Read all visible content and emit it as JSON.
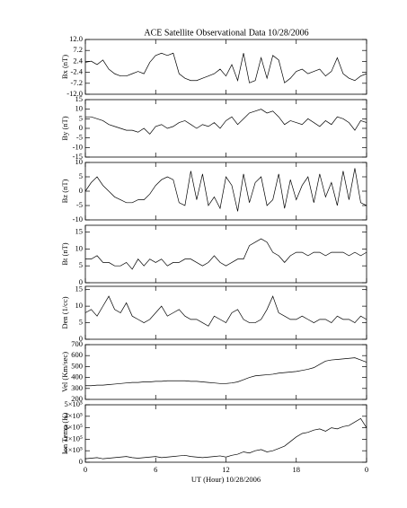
{
  "chart_data": [
    {
      "type": "line",
      "title": "ACE Satellite Observational Data   10/28/2006",
      "y_label": "Bx (nT)",
      "xlim": [
        0,
        24
      ],
      "ylim": [
        -12,
        12
      ],
      "yticks": [
        {
          "value": -12,
          "label": "-12.0"
        },
        -7.2,
        -2.4,
        2.4,
        7.2,
        {
          "value": 12,
          "label": "12.0"
        }
      ],
      "x": [
        0,
        0.5,
        1,
        1.5,
        2,
        2.5,
        3,
        3.5,
        4,
        4.5,
        5,
        5.5,
        6,
        6.5,
        7,
        7.5,
        8,
        8.5,
        9,
        9.5,
        10,
        10.5,
        11,
        11.5,
        12,
        12.5,
        13,
        13.5,
        14,
        14.5,
        15,
        15.5,
        16,
        16.5,
        17,
        17.5,
        18,
        18.5,
        19,
        19.5,
        20,
        20.5,
        21,
        21.5,
        22,
        22.5,
        23,
        23.5,
        24
      ],
      "values": [
        2,
        2.5,
        1,
        3,
        -1,
        -3,
        -4,
        -4,
        -3,
        -2,
        -3,
        2,
        5,
        6,
        5,
        6,
        -3,
        -5,
        -6,
        -6,
        -5,
        -4,
        -3,
        -1,
        -4,
        1,
        -6,
        6,
        -7,
        -6,
        4,
        -5,
        5,
        3,
        -7,
        -5,
        -2,
        -1,
        -3,
        -2,
        -1,
        -4,
        -2,
        4,
        -3,
        -5,
        -6,
        -4,
        -3
      ],
      "color": "#000000"
    },
    {
      "type": "line",
      "y_label": "By (nT)",
      "xlim": [
        0,
        24
      ],
      "ylim": [
        -15,
        15
      ],
      "yticks": [
        -15,
        -10,
        -5,
        0,
        5,
        10,
        15
      ],
      "x": [
        0,
        0.5,
        1,
        1.5,
        2,
        2.5,
        3,
        3.5,
        4,
        4.5,
        5,
        5.5,
        6,
        6.5,
        7,
        7.5,
        8,
        8.5,
        9,
        9.5,
        10,
        10.5,
        11,
        11.5,
        12,
        12.5,
        13,
        13.5,
        14,
        14.5,
        15,
        15.5,
        16,
        16.5,
        17,
        17.5,
        18,
        18.5,
        19,
        19.5,
        20,
        20.5,
        21,
        21.5,
        22,
        22.5,
        23,
        23.5,
        24
      ],
      "values": [
        6,
        6,
        5,
        4,
        2,
        1,
        0,
        -1,
        -1,
        -2,
        0,
        -3,
        1,
        2,
        0,
        1,
        3,
        4,
        2,
        0,
        2,
        1,
        3,
        0,
        4,
        6,
        2,
        5,
        8,
        9,
        10,
        8,
        9,
        6,
        2,
        4,
        3,
        2,
        5,
        3,
        1,
        4,
        2,
        6,
        5,
        3,
        -1,
        4,
        3
      ],
      "color": "#000000"
    },
    {
      "type": "line",
      "y_label": "Bz (nT)",
      "xlim": [
        0,
        24
      ],
      "ylim": [
        -10,
        10
      ],
      "yticks": [
        -10,
        -5,
        0,
        5,
        10
      ],
      "x": [
        0,
        0.5,
        1,
        1.5,
        2,
        2.5,
        3,
        3.5,
        4,
        4.5,
        5,
        5.5,
        6,
        6.5,
        7,
        7.5,
        8,
        8.5,
        9,
        9.5,
        10,
        10.5,
        11,
        11.5,
        12,
        12.5,
        13,
        13.5,
        14,
        14.5,
        15,
        15.5,
        16,
        16.5,
        17,
        17.5,
        18,
        18.5,
        19,
        19.5,
        20,
        20.5,
        21,
        21.5,
        22,
        22.5,
        23,
        23.5,
        24
      ],
      "values": [
        0,
        3,
        5,
        2,
        0,
        -2,
        -3,
        -4,
        -4,
        -3,
        -3,
        -1,
        2,
        4,
        5,
        4,
        -4,
        -5,
        7,
        -3,
        6,
        -5,
        -2,
        -6,
        5,
        2,
        -7,
        6,
        -4,
        3,
        5,
        -5,
        -3,
        6,
        -6,
        4,
        -3,
        2,
        5,
        -4,
        6,
        -2,
        3,
        -5,
        7,
        -3,
        8,
        -4,
        -5
      ],
      "color": "#000000"
    },
    {
      "type": "line",
      "y_label": "Bt (nT)",
      "xlim": [
        0,
        24
      ],
      "ylim": [
        0,
        17
      ],
      "yticks": [
        0,
        5,
        10,
        15
      ],
      "x": [
        0,
        0.5,
        1,
        1.5,
        2,
        2.5,
        3,
        3.5,
        4,
        4.5,
        5,
        5.5,
        6,
        6.5,
        7,
        7.5,
        8,
        8.5,
        9,
        9.5,
        10,
        10.5,
        11,
        11.5,
        12,
        12.5,
        13,
        13.5,
        14,
        14.5,
        15,
        15.5,
        16,
        16.5,
        17,
        17.5,
        18,
        18.5,
        19,
        19.5,
        20,
        20.5,
        21,
        21.5,
        22,
        22.5,
        23,
        23.5,
        24
      ],
      "values": [
        7,
        7,
        8,
        6,
        6,
        5,
        5,
        6,
        4,
        7,
        5,
        7,
        6,
        7,
        5,
        6,
        6,
        7,
        7,
        6,
        5,
        6,
        8,
        6,
        5,
        6,
        7,
        7,
        11,
        12,
        13,
        12,
        9,
        8,
        6,
        8,
        9,
        9,
        8,
        9,
        9,
        8,
        9,
        9,
        9,
        8,
        9,
        8,
        9
      ],
      "color": "#000000"
    },
    {
      "type": "line",
      "y_label": "Den (1/cc)",
      "xlim": [
        0,
        24
      ],
      "ylim": [
        0,
        16
      ],
      "yticks": [
        0,
        5,
        10,
        15
      ],
      "x": [
        0,
        0.5,
        1,
        1.5,
        2,
        2.5,
        3,
        3.5,
        4,
        4.5,
        5,
        5.5,
        6,
        6.5,
        7,
        7.5,
        8,
        8.5,
        9,
        9.5,
        10,
        10.5,
        11,
        11.5,
        12,
        12.5,
        13,
        13.5,
        14,
        14.5,
        15,
        15.5,
        16,
        16.5,
        17,
        17.5,
        18,
        18.5,
        19,
        19.5,
        20,
        20.5,
        21,
        21.5,
        22,
        22.5,
        23,
        23.5,
        24
      ],
      "values": [
        8,
        9,
        7,
        10,
        13,
        9,
        8,
        11,
        7,
        6,
        5,
        6,
        8,
        10,
        7,
        8,
        9,
        7,
        6,
        6,
        5,
        4,
        7,
        6,
        5,
        8,
        9,
        6,
        5,
        5,
        6,
        9,
        13,
        8,
        7,
        6,
        6,
        7,
        6,
        5,
        6,
        6,
        5,
        7,
        6,
        6,
        5,
        7,
        6
      ],
      "color": "#000000"
    },
    {
      "type": "line",
      "y_label": "Vel (Km/sec)",
      "xlim": [
        0,
        24
      ],
      "ylim": [
        200,
        700
      ],
      "yticks": [
        200,
        300,
        400,
        500,
        600,
        700
      ],
      "x": [
        0,
        0.5,
        1,
        1.5,
        2,
        2.5,
        3,
        3.5,
        4,
        4.5,
        5,
        5.5,
        6,
        6.5,
        7,
        7.5,
        8,
        8.5,
        9,
        9.5,
        10,
        10.5,
        11,
        11.5,
        12,
        12.5,
        13,
        13.5,
        14,
        14.5,
        15,
        15.5,
        16,
        16.5,
        17,
        17.5,
        18,
        18.5,
        19,
        19.5,
        20,
        20.5,
        21,
        21.5,
        22,
        22.5,
        23,
        23.5,
        24
      ],
      "values": [
        325,
        325,
        330,
        330,
        335,
        340,
        345,
        350,
        355,
        355,
        360,
        360,
        365,
        365,
        370,
        370,
        370,
        370,
        365,
        365,
        360,
        355,
        350,
        345,
        345,
        350,
        360,
        380,
        400,
        415,
        420,
        425,
        430,
        440,
        445,
        450,
        455,
        465,
        475,
        490,
        520,
        550,
        560,
        565,
        570,
        575,
        580,
        560,
        540
      ],
      "color": "#000000"
    },
    {
      "type": "line",
      "y_label": "Ion Temp (K)",
      "x_label": "UT (Hour)   10/28/2006",
      "xlim": [
        0,
        24
      ],
      "xticks": [
        0,
        6,
        12,
        18,
        {
          "value": 24,
          "label": "0"
        }
      ],
      "ylim": [
        0,
        500000
      ],
      "yticks": [
        0,
        {
          "value": 100000,
          "label": "1×10⁵"
        },
        {
          "value": 200000,
          "label": "2×10⁵"
        },
        {
          "value": 300000,
          "label": "3×10⁵"
        },
        {
          "value": 400000,
          "label": "4×10⁵"
        },
        {
          "value": 500000,
          "label": "5×10⁵"
        }
      ],
      "x": [
        0,
        0.5,
        1,
        1.5,
        2,
        2.5,
        3,
        3.5,
        4,
        4.5,
        5,
        5.5,
        6,
        6.5,
        7,
        7.5,
        8,
        8.5,
        9,
        9.5,
        10,
        10.5,
        11,
        11.5,
        12,
        12.5,
        13,
        13.5,
        14,
        14.5,
        15,
        15.5,
        16,
        16.5,
        17,
        17.5,
        18,
        18.5,
        19,
        19.5,
        20,
        20.5,
        21,
        21.5,
        22,
        22.5,
        23,
        23.5,
        24
      ],
      "values": [
        30000,
        35000,
        40000,
        30000,
        35000,
        40000,
        45000,
        50000,
        40000,
        35000,
        40000,
        45000,
        50000,
        40000,
        45000,
        50000,
        55000,
        60000,
        50000,
        45000,
        40000,
        45000,
        50000,
        55000,
        45000,
        60000,
        70000,
        90000,
        80000,
        100000,
        110000,
        90000,
        100000,
        120000,
        140000,
        180000,
        220000,
        250000,
        260000,
        280000,
        290000,
        270000,
        300000,
        290000,
        310000,
        320000,
        350000,
        380000,
        300000
      ],
      "color": "#000000"
    }
  ]
}
